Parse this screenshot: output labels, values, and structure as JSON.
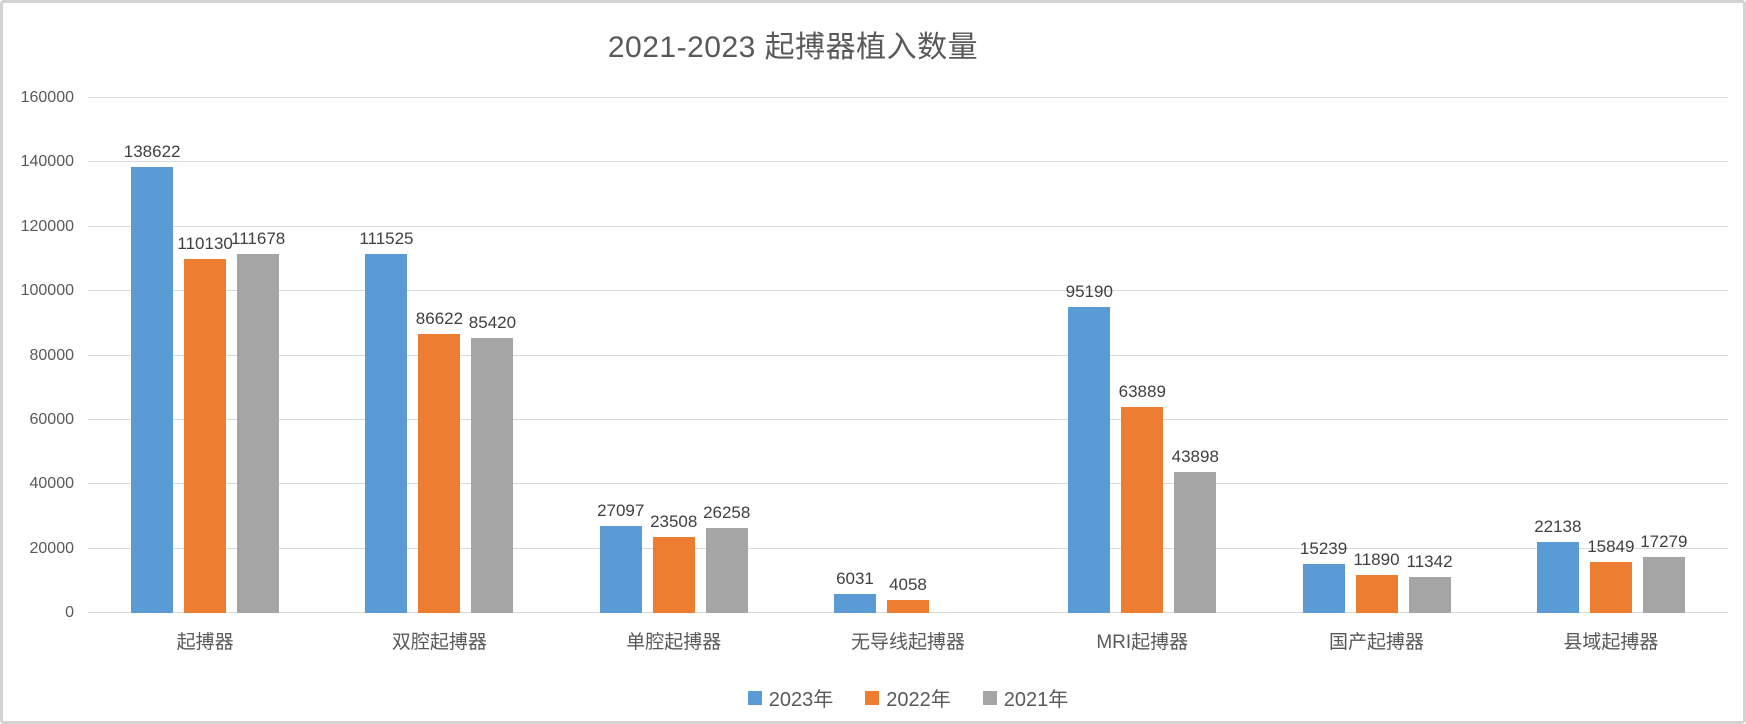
{
  "title": "2021-2023 起搏器植入数量",
  "chart_data": {
    "type": "bar",
    "title": "2021-2023 起搏器植入数量",
    "categories": [
      "起搏器",
      "双腔起搏器",
      "单腔起搏器",
      "无导线起搏器",
      "MRI起搏器",
      "国产起搏器",
      "县域起搏器"
    ],
    "series": [
      {
        "name": "2023年",
        "color": "#5B9BD5",
        "values": [
          138622,
          111525,
          27097,
          6031,
          95190,
          15239,
          22138
        ]
      },
      {
        "name": "2022年",
        "color": "#ED7D31",
        "values": [
          110130,
          86622,
          23508,
          4058,
          63889,
          11890,
          15849
        ]
      },
      {
        "name": "2021年",
        "color": "#A5A5A5",
        "values": [
          111678,
          85420,
          26258,
          null,
          43898,
          11342,
          17279
        ]
      }
    ],
    "xlabel": "",
    "ylabel": "",
    "ylim": [
      0,
      160000
    ],
    "y_ticks": [
      0,
      20000,
      40000,
      60000,
      80000,
      100000,
      120000,
      140000,
      160000
    ],
    "grid": true,
    "data_labels": true,
    "legend_position": "bottom"
  },
  "colors": {
    "grid": "#D9D9D9",
    "axis_text": "#595959",
    "data_label_text": "#404040",
    "frame_border": "#D3D3D3"
  }
}
